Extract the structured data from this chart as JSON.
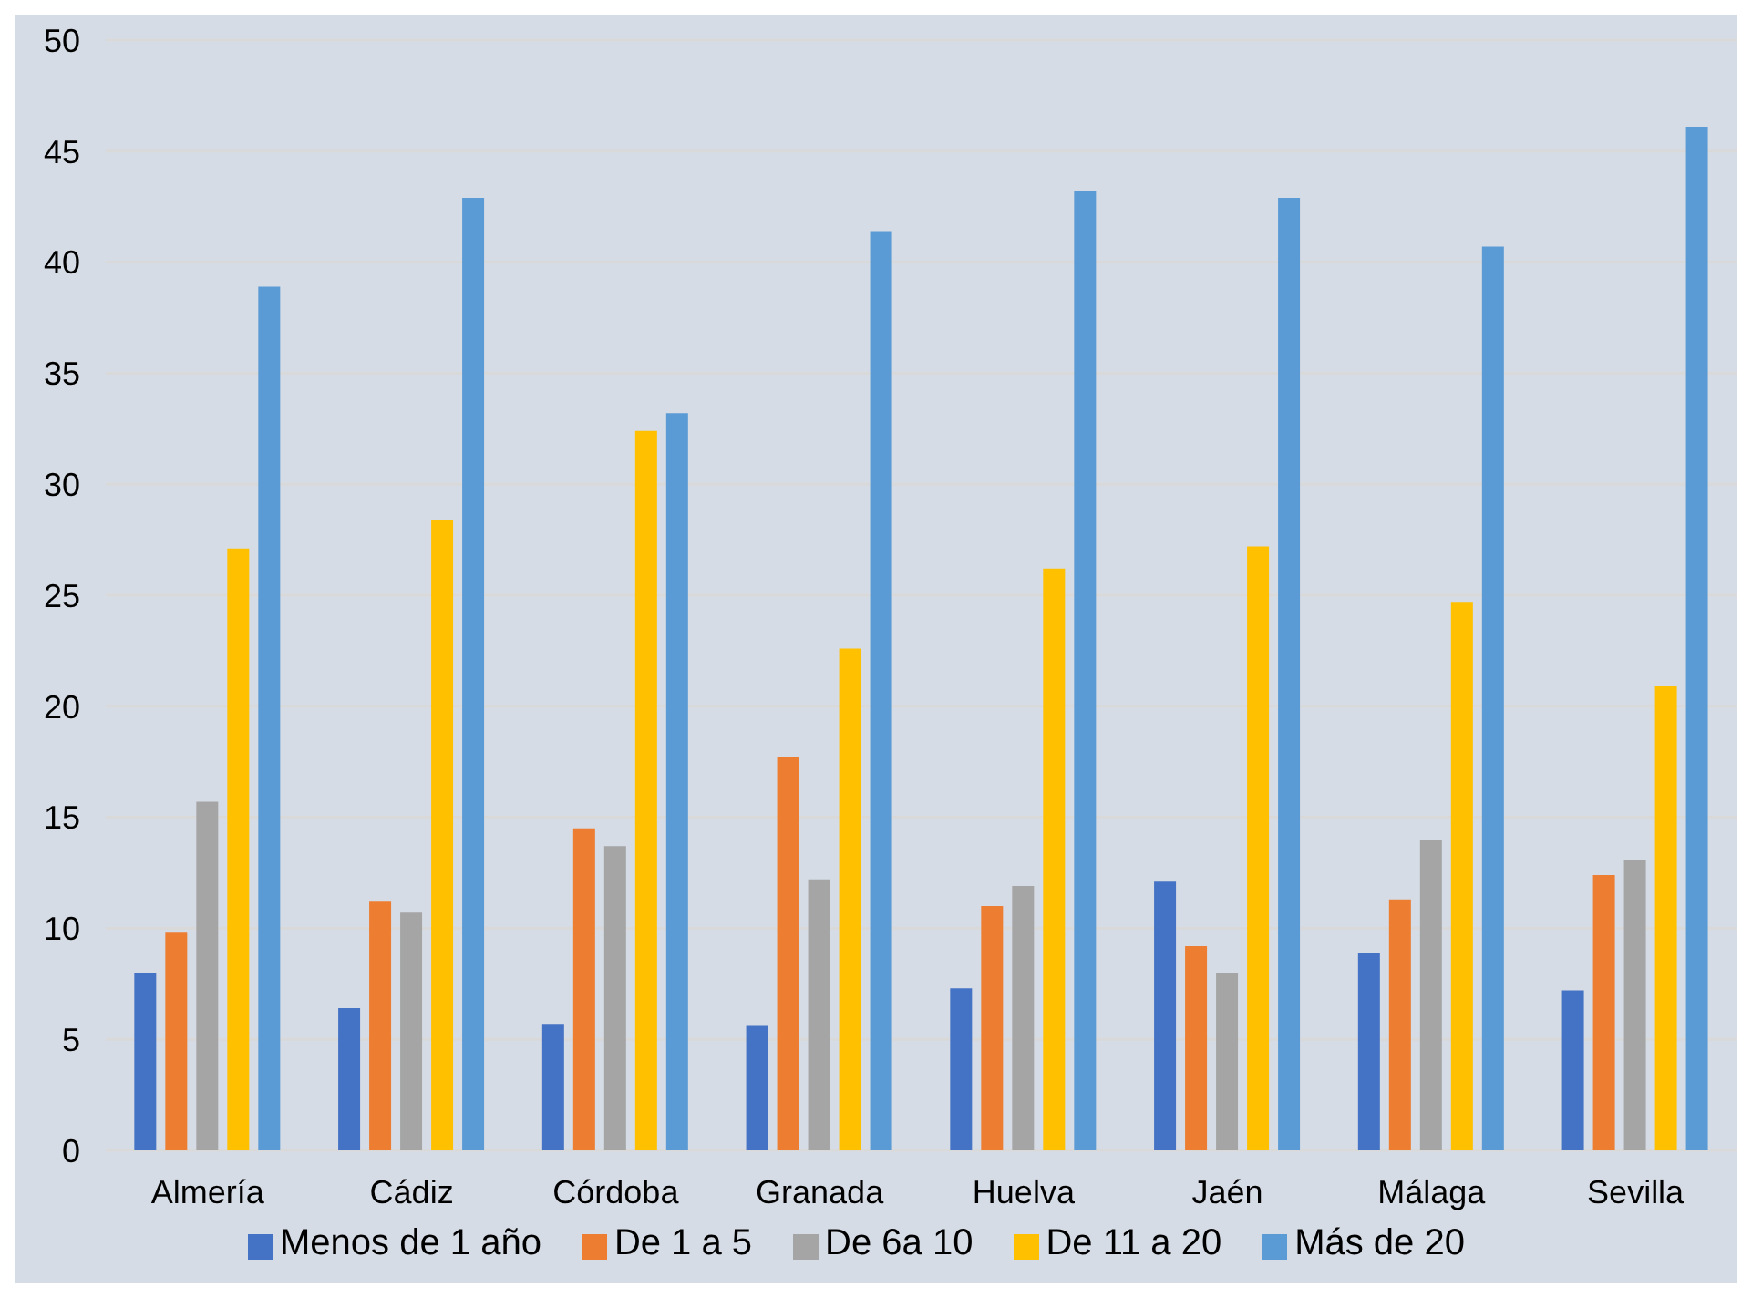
{
  "chart_data": {
    "type": "bar",
    "categories": [
      "Almería",
      "Cádiz",
      "Córdoba",
      "Granada",
      "Huelva",
      "Jaén",
      "Málaga",
      "Sevilla"
    ],
    "series": [
      {
        "name": "Menos de 1 año",
        "color": "#4472c4",
        "values": [
          8.0,
          6.4,
          5.7,
          5.6,
          7.3,
          12.1,
          8.9,
          7.2
        ]
      },
      {
        "name": "De 1 a 5",
        "color": "#ed7d31",
        "values": [
          9.8,
          11.2,
          14.5,
          17.7,
          11.0,
          9.2,
          11.3,
          12.4
        ]
      },
      {
        "name": "De 6a 10",
        "color": "#a5a5a5",
        "values": [
          15.7,
          10.7,
          13.7,
          12.2,
          11.9,
          8.0,
          14.0,
          13.1
        ]
      },
      {
        "name": "De 11 a 20",
        "color": "#ffc000",
        "values": [
          27.1,
          28.4,
          32.4,
          22.6,
          26.2,
          27.2,
          24.7,
          20.9
        ]
      },
      {
        "name": "Más de 20",
        "color": "#5b9bd5",
        "values": [
          38.9,
          42.9,
          33.2,
          41.4,
          43.2,
          42.9,
          40.7,
          46.1
        ]
      }
    ],
    "ylim": [
      0,
      50
    ],
    "yticks": [
      0,
      5,
      10,
      15,
      20,
      25,
      30,
      35,
      40,
      45,
      50
    ],
    "grid": "y",
    "legend": "bottom"
  }
}
